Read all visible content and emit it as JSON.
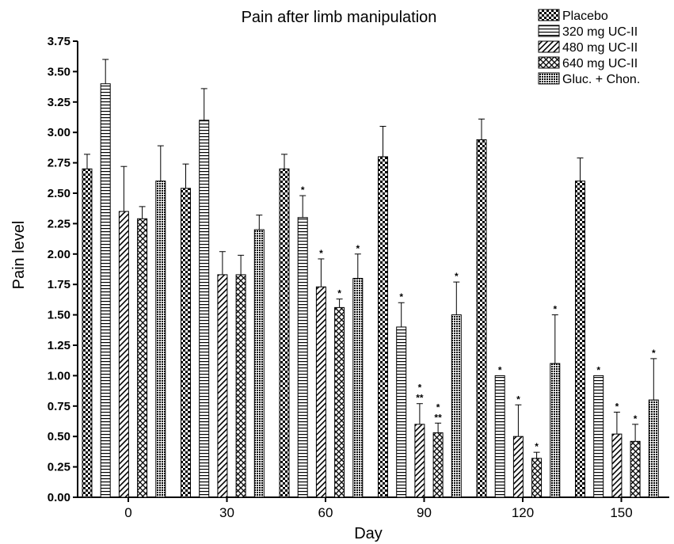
{
  "chart_data": {
    "type": "bar",
    "title": "Pain after limb manipulation",
    "xlabel": "Day",
    "ylabel": "Pain level",
    "ylim": [
      0,
      3.75
    ],
    "yticks": [
      "0.00",
      "0.25",
      "0.50",
      "0.75",
      "1.00",
      "1.25",
      "1.50",
      "1.75",
      "2.00",
      "2.25",
      "2.50",
      "2.75",
      "3.00",
      "3.25",
      "3.50",
      "3.75"
    ],
    "categories": [
      "0",
      "30",
      "60",
      "90",
      "120",
      "150"
    ],
    "grid": false,
    "legend_position": "top-right",
    "series": [
      {
        "name": "Placebo",
        "pattern": "checker",
        "values": [
          2.7,
          2.54,
          2.7,
          2.8,
          2.94,
          2.6
        ],
        "errors": [
          0.12,
          0.2,
          0.12,
          0.25,
          0.17,
          0.19
        ],
        "significance": [
          "",
          "",
          "",
          "",
          "",
          ""
        ]
      },
      {
        "name": "320 mg UC-II",
        "pattern": "horizontal",
        "values": [
          3.4,
          3.1,
          2.3,
          1.4,
          1.0,
          1.0
        ],
        "errors": [
          0.2,
          0.26,
          0.18,
          0.2,
          0.0,
          0.0
        ],
        "significance": [
          "",
          "",
          "*",
          "*",
          "*",
          "*"
        ]
      },
      {
        "name": "480 mg UC-II",
        "pattern": "diagonal",
        "values": [
          2.35,
          1.83,
          1.73,
          0.6,
          0.5,
          0.52
        ],
        "errors": [
          0.37,
          0.19,
          0.23,
          0.17,
          0.26,
          0.18
        ],
        "significance": [
          "",
          "",
          "*",
          "*\n**",
          "*",
          "*"
        ]
      },
      {
        "name": "640 mg UC-II",
        "pattern": "crosshatch",
        "values": [
          2.29,
          1.83,
          1.56,
          0.53,
          0.32,
          0.46
        ],
        "errors": [
          0.1,
          0.16,
          0.07,
          0.08,
          0.05,
          0.14
        ],
        "significance": [
          "",
          "",
          "*",
          "*\n**",
          "*",
          "*"
        ]
      },
      {
        "name": "Gluc. + Chon.",
        "pattern": "dense",
        "values": [
          2.6,
          2.2,
          1.8,
          1.5,
          1.1,
          0.8
        ],
        "errors": [
          0.29,
          0.12,
          0.2,
          0.27,
          0.4,
          0.34
        ],
        "significance": [
          "",
          "",
          "*",
          "*",
          "*",
          "*"
        ]
      }
    ]
  }
}
